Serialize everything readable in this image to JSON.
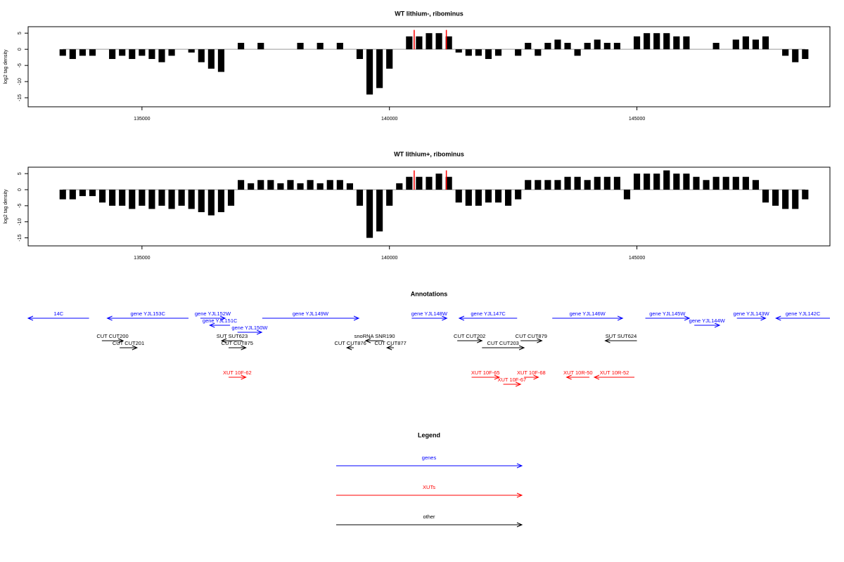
{
  "chart_data": [
    {
      "type": "bar",
      "title": "WT lithium-, ribominus",
      "y_label": "log2 tag density",
      "xlim": [
        132700,
        148900
      ],
      "xticks": [
        135000,
        140000,
        145000
      ],
      "ylim": [
        -17.8,
        7
      ],
      "yticks": [
        -15,
        -10,
        -5,
        0,
        5
      ],
      "series": [
        {
          "color": "#000000",
          "x": [
            133400,
            133600,
            133800,
            134000,
            134200,
            134400,
            134600,
            134800,
            135000,
            135200,
            135400,
            135600,
            135800,
            136000,
            136200,
            136400,
            136600,
            136800,
            137000,
            137200,
            137400,
            137600,
            137800,
            138000,
            138200,
            138400,
            138600,
            138800,
            139000,
            139200,
            139400,
            139600,
            139800,
            140000,
            140200,
            140400,
            140600,
            140800,
            141000,
            141200,
            141400,
            141600,
            141800,
            142000,
            142200,
            142400,
            142600,
            142800,
            143000,
            143200,
            143400,
            143600,
            143800,
            144000,
            144200,
            144400,
            144600,
            144800,
            145000,
            145200,
            145400,
            145600,
            145800,
            146000,
            146200,
            146400,
            146600,
            146800,
            147000,
            147200,
            147400,
            147600,
            147800,
            148000,
            148200,
            148400
          ],
          "values": [
            -2,
            -3,
            -2,
            -2,
            0,
            -3,
            -2,
            -3,
            -2,
            -3,
            -4,
            -2,
            0,
            -1,
            -4,
            -6,
            -7,
            0,
            2,
            0,
            2,
            0,
            0,
            0,
            2,
            0,
            2,
            0,
            2,
            0,
            -3,
            -14,
            -12,
            -6,
            0,
            4,
            4,
            5,
            5,
            4,
            -1,
            -2,
            -2,
            -3,
            -2,
            0,
            -2,
            2,
            -2,
            2,
            3,
            2,
            -2,
            2,
            3,
            2,
            2,
            0,
            4,
            5,
            5,
            5,
            4,
            4,
            0,
            0,
            2,
            0,
            3,
            4,
            3,
            4,
            0,
            -2,
            -4,
            -3
          ]
        },
        {
          "color": "#ff0000",
          "x": [
            140500,
            141150
          ],
          "values": [
            6,
            6
          ]
        }
      ]
    },
    {
      "type": "bar",
      "title": "WT lithium+, ribominus",
      "y_label": "log2 tag density",
      "xlim": [
        132700,
        148900
      ],
      "xticks": [
        135000,
        140000,
        145000
      ],
      "ylim": [
        -17.5,
        7
      ],
      "yticks": [
        -15,
        -10,
        -5,
        0,
        5
      ],
      "series": [
        {
          "color": "#000000",
          "x": [
            133400,
            133600,
            133800,
            134000,
            134200,
            134400,
            134600,
            134800,
            135000,
            135200,
            135400,
            135600,
            135800,
            136000,
            136200,
            136400,
            136600,
            136800,
            137000,
            137200,
            137400,
            137600,
            137800,
            138000,
            138200,
            138400,
            138600,
            138800,
            139000,
            139200,
            139400,
            139600,
            139800,
            140000,
            140200,
            140400,
            140600,
            140800,
            141000,
            141200,
            141400,
            141600,
            141800,
            142000,
            142200,
            142400,
            142600,
            142800,
            143000,
            143200,
            143400,
            143600,
            143800,
            144000,
            144200,
            144400,
            144600,
            144800,
            145000,
            145200,
            145400,
            145600,
            145800,
            146000,
            146200,
            146400,
            146600,
            146800,
            147000,
            147200,
            147400,
            147600,
            147800,
            148000,
            148200,
            148400
          ],
          "values": [
            -3,
            -3,
            -2,
            -2,
            -4,
            -5,
            -5,
            -6,
            -5,
            -6,
            -5,
            -6,
            -5,
            -6,
            -7,
            -8,
            -7,
            -5,
            3,
            2,
            3,
            3,
            2,
            3,
            2,
            3,
            2,
            3,
            3,
            2,
            -5,
            -15,
            -13,
            -5,
            2,
            4,
            4,
            4,
            5,
            4,
            -4,
            -5,
            -5,
            -4,
            -4,
            -5,
            -3,
            3,
            3,
            3,
            3,
            4,
            4,
            3,
            4,
            4,
            4,
            -3,
            5,
            5,
            5,
            6,
            5,
            5,
            4,
            3,
            4,
            4,
            4,
            4,
            3,
            -4,
            -5,
            -6,
            -6,
            -3
          ]
        },
        {
          "color": "#ff0000",
          "x": [
            140500,
            141150
          ],
          "values": [
            6,
            6
          ]
        }
      ]
    }
  ],
  "annotations": {
    "title": "Annotations",
    "xlim": [
      132700,
      148900
    ],
    "groups": [
      {
        "color": "#0000ff",
        "items": [
          {
            "label": "14C",
            "start": 132700,
            "end": 133930,
            "strand": "-"
          },
          {
            "label": "gene YJL153C",
            "start": 134300,
            "end": 135940,
            "strand": "-"
          },
          {
            "label": "gene YJL152W",
            "start": 136180,
            "end": 136680,
            "strand": "+"
          },
          {
            "label": "gene YJL151C",
            "start": 136370,
            "end": 136780,
            "strand": "-"
          },
          {
            "label": "gene YJL150W",
            "start": 136930,
            "end": 137420,
            "strand": "+"
          },
          {
            "label": "gene YJL149W",
            "start": 137430,
            "end": 139380,
            "strand": "+"
          },
          {
            "label": "gene YJL148W",
            "start": 140450,
            "end": 141160,
            "strand": "+"
          },
          {
            "label": "gene YJL147C",
            "start": 141410,
            "end": 142580,
            "strand": "-"
          },
          {
            "label": "gene YJL146W",
            "start": 143290,
            "end": 144710,
            "strand": "+"
          },
          {
            "label": "gene YJL145W",
            "start": 145170,
            "end": 146060,
            "strand": "+"
          },
          {
            "label": "gene YJL144W",
            "start": 146160,
            "end": 146670,
            "strand": "+"
          },
          {
            "label": "gene YJL143W",
            "start": 147020,
            "end": 147600,
            "strand": "+"
          },
          {
            "label": "gene YJL142C",
            "start": 147810,
            "end": 148900,
            "strand": "-"
          }
        ]
      },
      {
        "color": "#000000",
        "items": [
          {
            "label": "snoRNA SNR190",
            "start": 139520,
            "end": 139880,
            "strand": "-"
          },
          {
            "label": "SUT SUT623",
            "start": 136610,
            "end": 137030,
            "strand": "-"
          },
          {
            "label": "SUT SUT624",
            "start": 144360,
            "end": 145000,
            "strand": "-"
          },
          {
            "label": "CUT CUT200",
            "start": 134190,
            "end": 134620,
            "strand": "+"
          },
          {
            "label": "CUT CUT201",
            "start": 134550,
            "end": 134900,
            "strand": "+"
          },
          {
            "label": "CUT CUT202",
            "start": 141370,
            "end": 141870,
            "strand": "+"
          },
          {
            "label": "CUT CUT203",
            "start": 141870,
            "end": 142720,
            "strand": "+"
          },
          {
            "label": "CUT CUT875",
            "start": 136750,
            "end": 137100,
            "strand": "+"
          },
          {
            "label": "CUT CUT876",
            "start": 139140,
            "end": 139280,
            "strand": "-"
          },
          {
            "label": "CUT CUT877",
            "start": 139950,
            "end": 140090,
            "strand": "-"
          },
          {
            "label": "CUT CUT879",
            "start": 142650,
            "end": 143080,
            "strand": "+"
          }
        ]
      },
      {
        "color": "#ff0000",
        "items": [
          {
            "label": "XUT 10F-62",
            "start": 136750,
            "end": 137100,
            "strand": "+"
          },
          {
            "label": "XUT 10F-65",
            "start": 141660,
            "end": 142220,
            "strand": "+"
          },
          {
            "label": "XUT 10F-67",
            "start": 142300,
            "end": 142650,
            "strand": "+"
          },
          {
            "label": "XUT 10F-68",
            "start": 142720,
            "end": 143010,
            "strand": "+"
          },
          {
            "label": "XUT 10R-50",
            "start": 143580,
            "end": 144040,
            "strand": "-"
          },
          {
            "label": "XUT 10R-52",
            "start": 144140,
            "end": 144950,
            "strand": "-"
          }
        ]
      }
    ]
  },
  "legend": {
    "title": "Legend",
    "items": [
      {
        "label": "genes",
        "color": "#0000ff"
      },
      {
        "label": "XUTs",
        "color": "#ff0000"
      },
      {
        "label": "other",
        "color": "#000000"
      }
    ]
  }
}
